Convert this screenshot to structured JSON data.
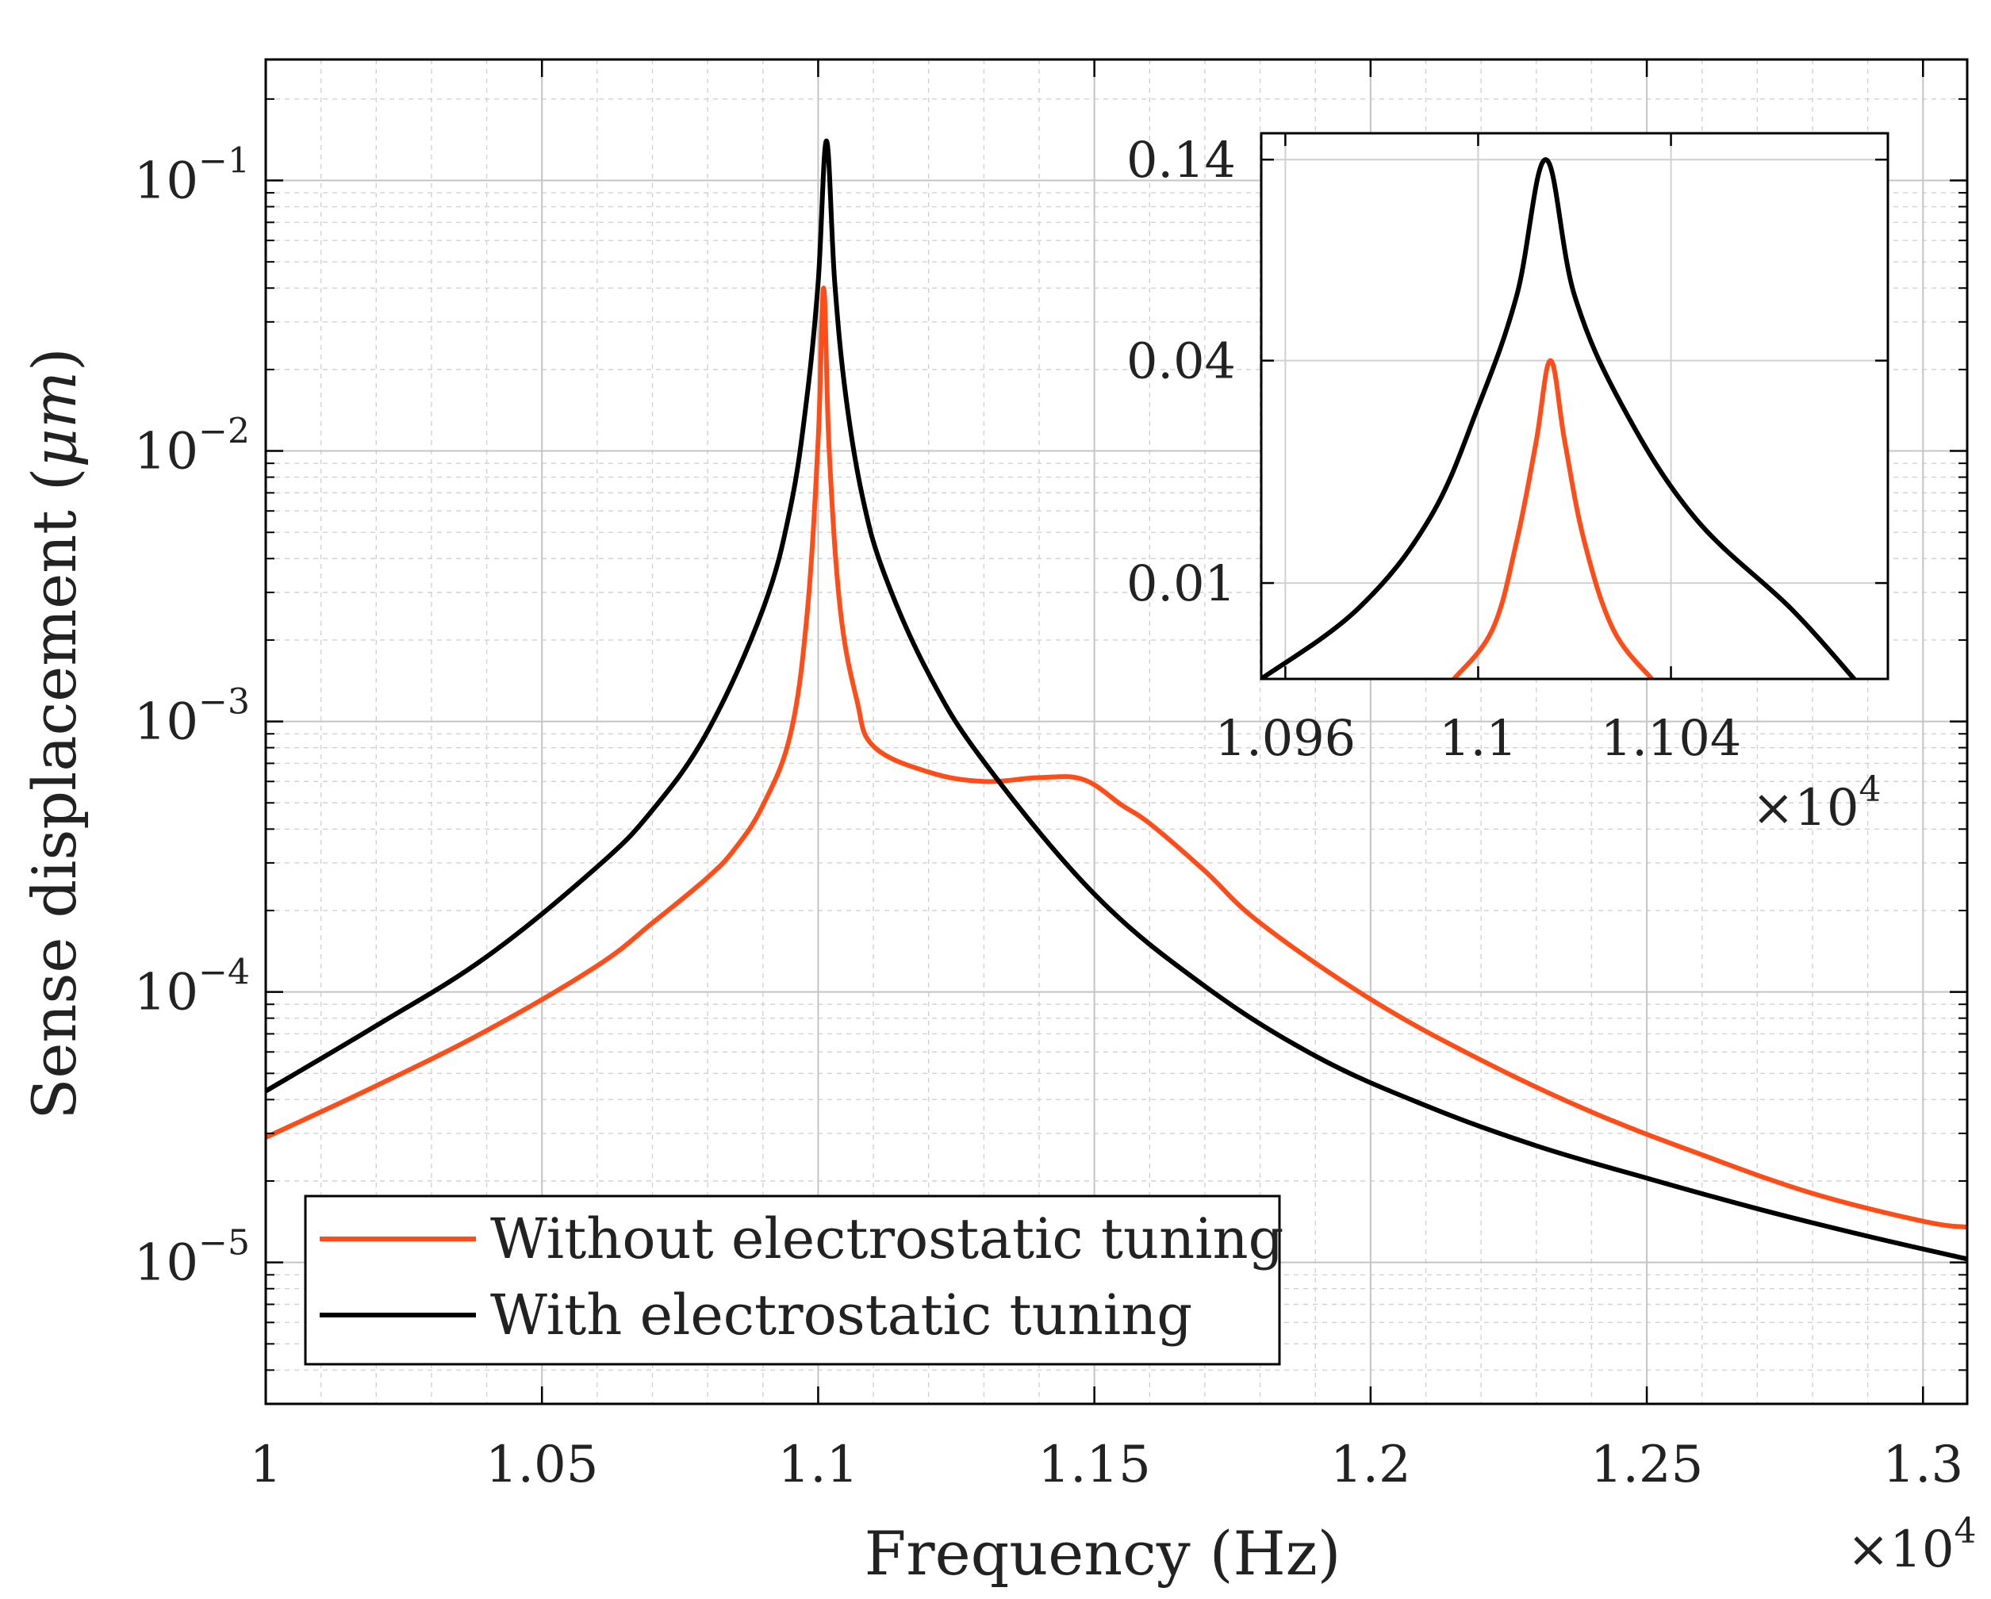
{
  "chart_data": [
    {
      "type": "line",
      "panel": "main",
      "title": "",
      "xlabel": "Frequency (Hz)",
      "ylabel": "Sense displacement (μm)",
      "ylabel_parts": {
        "text": "Sense displacement (",
        "unit": "μm",
        "close": ")"
      },
      "x_multiplier": {
        "base": "×10",
        "exp": "4"
      },
      "xscale": "linear",
      "yscale": "log",
      "xlim": [
        1.0,
        1.308
      ],
      "ylim": [
        3e-06,
        0.28
      ],
      "grid": true,
      "minor_grid": true,
      "x_ticks": [
        {
          "value": 1.0,
          "label": "1"
        },
        {
          "value": 1.05,
          "label": "1.05"
        },
        {
          "value": 1.1,
          "label": "1.1"
        },
        {
          "value": 1.15,
          "label": "1.15"
        },
        {
          "value": 1.2,
          "label": "1.2"
        },
        {
          "value": 1.25,
          "label": "1.25"
        },
        {
          "value": 1.3,
          "label": "1.3"
        }
      ],
      "y_ticks": [
        {
          "value": 0.1,
          "base": "10",
          "exp": "−1"
        },
        {
          "value": 0.01,
          "base": "10",
          "exp": "−2"
        },
        {
          "value": 0.001,
          "base": "10",
          "exp": "−3"
        },
        {
          "value": 0.0001,
          "base": "10",
          "exp": "−4"
        },
        {
          "value": 1e-05,
          "base": "10",
          "exp": "−5"
        }
      ],
      "legend_position": "bottom-left",
      "series": [
        {
          "name": "Without electrostatic tuning",
          "color": "#ff4d1a",
          "x": [
            1.0,
            1.02,
            1.04,
            1.06,
            1.07,
            1.08,
            1.085,
            1.09,
            1.095,
            1.098,
            1.1,
            1.101,
            1.102,
            1.104,
            1.107,
            1.11,
            1.12,
            1.13,
            1.14,
            1.148,
            1.155,
            1.16,
            1.17,
            1.18,
            1.2,
            1.22,
            1.24,
            1.26,
            1.28,
            1.3,
            1.308
          ],
          "y": [
            2.9e-05,
            4.5e-05,
            7.2e-05,
            0.000125,
            0.00018,
            0.000265,
            0.00034,
            0.00049,
            0.0009,
            0.0025,
            0.011,
            0.04,
            0.01,
            0.0026,
            0.0012,
            0.00081,
            0.00065,
            0.0006,
            0.00062,
            0.00061,
            0.00049,
            0.00042,
            0.00028,
            0.00018,
            9.4e-05,
            5.6e-05,
            3.6e-05,
            2.5e-05,
            1.8e-05,
            1.42e-05,
            1.35e-05
          ]
        },
        {
          "name": "With electrostatic tuning",
          "color": "#000000",
          "x": [
            1.0,
            1.02,
            1.04,
            1.06,
            1.07,
            1.08,
            1.09,
            1.095,
            1.098,
            1.1,
            1.1015,
            1.103,
            1.105,
            1.108,
            1.112,
            1.12,
            1.13,
            1.15,
            1.17,
            1.19,
            1.21,
            1.23,
            1.25,
            1.27,
            1.29,
            1.308
          ],
          "y": [
            4.3e-05,
            7.5e-05,
            0.000135,
            0.00029,
            0.00047,
            0.00092,
            0.0026,
            0.0062,
            0.016,
            0.042,
            0.14,
            0.042,
            0.016,
            0.0068,
            0.0035,
            0.0015,
            0.00071,
            0.00023,
            0.000105,
            5.8e-05,
            3.8e-05,
            2.7e-05,
            2.05e-05,
            1.58e-05,
            1.25e-05,
            1.03e-05
          ]
        }
      ]
    },
    {
      "type": "line",
      "panel": "inset",
      "title": "",
      "xlabel": "",
      "ylabel": "",
      "x_multiplier": {
        "base": "×10",
        "exp": "4"
      },
      "xscale": "linear",
      "yscale": "log",
      "xlim": [
        1.0955,
        1.1085
      ],
      "ylim": [
        0.0055,
        0.165
      ],
      "grid": true,
      "x_ticks": [
        {
          "value": 1.096,
          "label": "1.096"
        },
        {
          "value": 1.1,
          "label": "1.1"
        },
        {
          "value": 1.104,
          "label": "1.104"
        }
      ],
      "y_ticks": [
        {
          "value": 0.14,
          "label": "0.14"
        },
        {
          "value": 0.04,
          "label": "0.04"
        },
        {
          "value": 0.01,
          "label": "0.01"
        }
      ],
      "series": [
        {
          "name": "Without electrostatic tuning",
          "color": "#ff4d1a",
          "x": [
            1.0995,
            1.1003,
            1.1008,
            1.1012,
            1.1015,
            1.1018,
            1.1022,
            1.1028,
            1.1036
          ],
          "y": [
            0.0055,
            0.0075,
            0.013,
            0.024,
            0.04,
            0.024,
            0.013,
            0.0075,
            0.0055
          ]
        },
        {
          "name": "With electrostatic tuning",
          "color": "#000000",
          "x": [
            1.0955,
            1.0975,
            1.099,
            1.1,
            1.1008,
            1.1014,
            1.102,
            1.103,
            1.1045,
            1.1065,
            1.1078
          ],
          "y": [
            0.0055,
            0.0085,
            0.015,
            0.03,
            0.06,
            0.14,
            0.06,
            0.03,
            0.015,
            0.0085,
            0.0055
          ]
        }
      ]
    }
  ]
}
